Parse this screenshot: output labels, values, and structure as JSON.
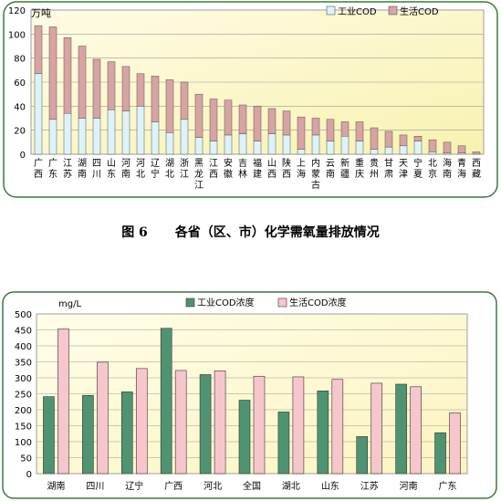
{
  "caption": {
    "number": "图 6",
    "text": "各省（区、市）化学需氧量排放情况"
  },
  "chart_data": [
    {
      "type": "bar",
      "stacked": true,
      "ylabel": "万吨",
      "ylim": [
        0,
        120
      ],
      "yticks": [
        0,
        20,
        40,
        60,
        80,
        100,
        120
      ],
      "grid": true,
      "legend_position": "top-right",
      "categories": [
        "广西",
        "广东",
        "江苏",
        "湖南",
        "四川",
        "山东",
        "河南",
        "河北",
        "辽宁",
        "湖北",
        "浙江",
        "黑龙江",
        "江西",
        "安徽",
        "吉林",
        "福建",
        "山西",
        "陕西",
        "上海",
        "内蒙古",
        "云南",
        "新疆",
        "重庆",
        "贵州",
        "甘肃",
        "天津",
        "宁夏",
        "北京",
        "海南",
        "青海",
        "西藏"
      ],
      "series": [
        {
          "name": "工业COD",
          "color": "#ddf3f9",
          "values": [
            67,
            29,
            34,
            30,
            30,
            37,
            36,
            40,
            27,
            18,
            29,
            14,
            11,
            16,
            17,
            11,
            17,
            16,
            4,
            16,
            11,
            15,
            11,
            4,
            6,
            7,
            11,
            2,
            1,
            1,
            0
          ]
        },
        {
          "name": "生活COD",
          "color": "#d8a3a3",
          "values": [
            40,
            77,
            63,
            60,
            49,
            40,
            37,
            27,
            38,
            44,
            31,
            36,
            35,
            29,
            24,
            29,
            21,
            20,
            27,
            14,
            18,
            12,
            16,
            18,
            13,
            9,
            4,
            10,
            9,
            6,
            2
          ]
        }
      ]
    },
    {
      "type": "bar",
      "ylabel": "mg/L",
      "ylim": [
        0,
        500
      ],
      "yticks": [
        0,
        50,
        100,
        150,
        200,
        250,
        300,
        350,
        400,
        450,
        500
      ],
      "grid": true,
      "legend_position": "top",
      "categories": [
        "湖南",
        "四川",
        "辽宁",
        "广西",
        "河北",
        "全国",
        "湖北",
        "山东",
        "江苏",
        "河南",
        "广东"
      ],
      "series": [
        {
          "name": "工业COD浓度",
          "color": "#4f9472",
          "values": [
            241,
            245,
            256,
            455,
            310,
            230,
            193,
            259,
            116,
            280,
            128
          ]
        },
        {
          "name": "生活COD浓度",
          "color": "#f7c6cc",
          "values": [
            453,
            349,
            329,
            323,
            322,
            305,
            303,
            295,
            283,
            272,
            190
          ]
        }
      ]
    }
  ]
}
